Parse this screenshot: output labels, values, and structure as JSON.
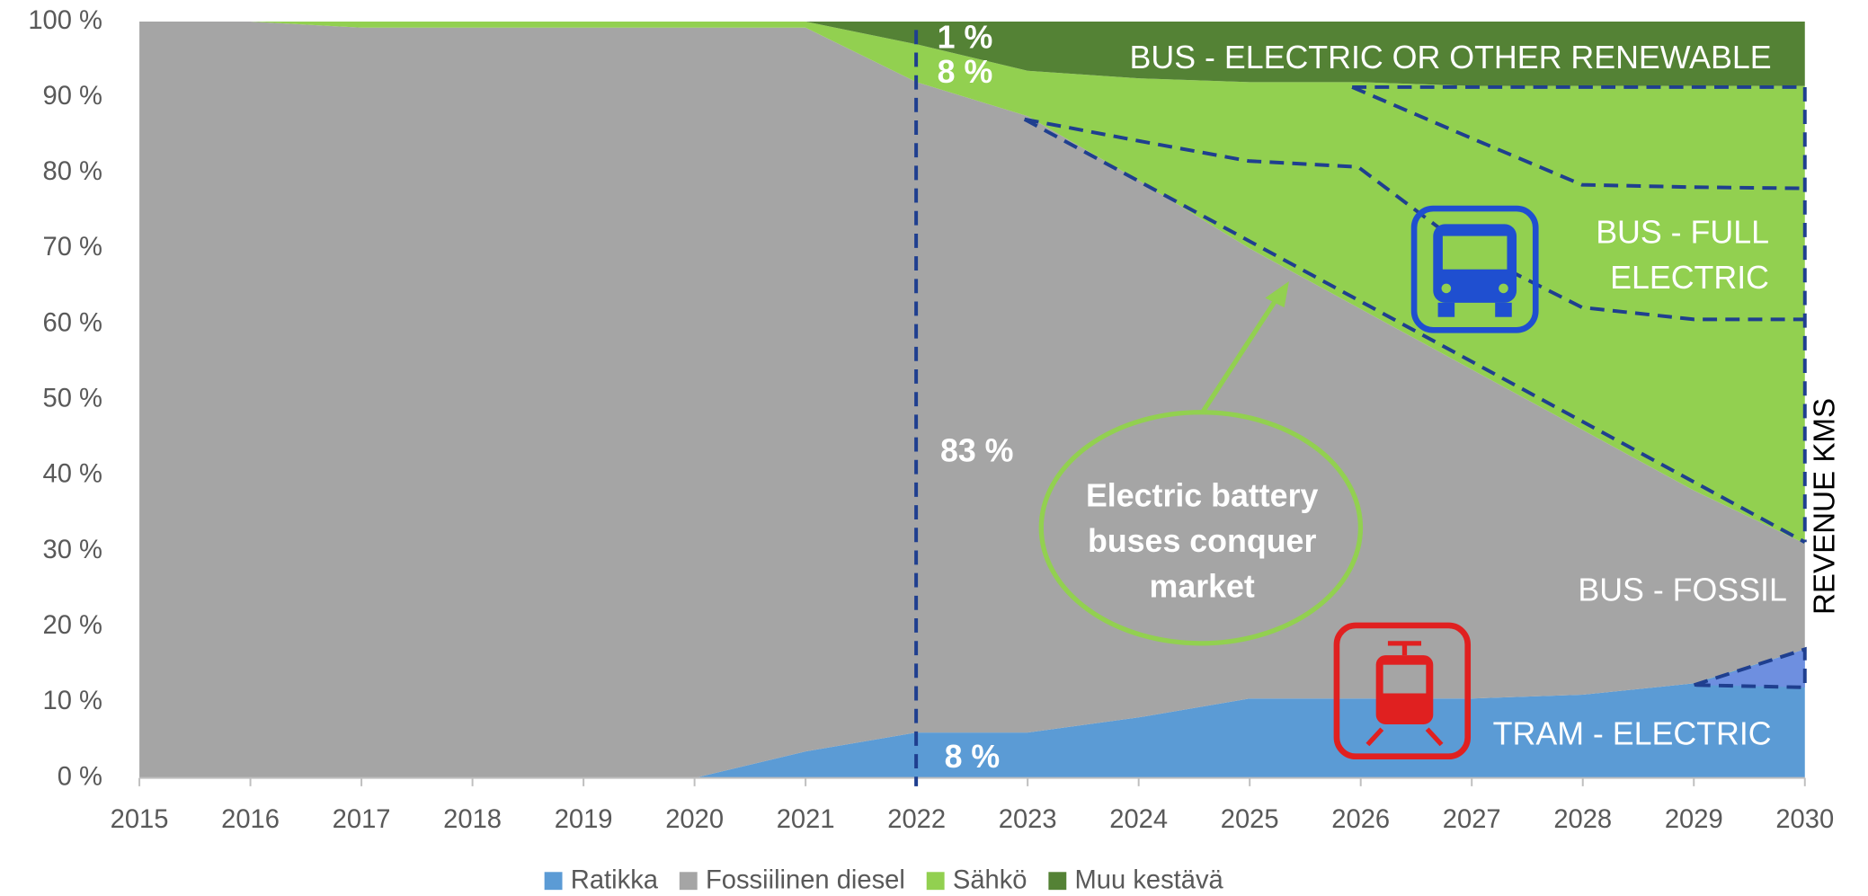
{
  "chart_data": {
    "type": "stacked_area",
    "x": [
      2015,
      2016,
      2017,
      2018,
      2019,
      2020,
      2021,
      2022,
      2023,
      2024,
      2025,
      2026,
      2027,
      2028,
      2029,
      2030
    ],
    "xlim": [
      2015,
      2030
    ],
    "xticks": [
      2015,
      2016,
      2017,
      2018,
      2019,
      2020,
      2021,
      2022,
      2023,
      2024,
      2025,
      2026,
      2027,
      2028,
      2029,
      2030
    ],
    "ylim": [
      0,
      100
    ],
    "yticks": [
      {
        "value": 0,
        "label": "0 %"
      },
      {
        "value": 10,
        "label": "10 %"
      },
      {
        "value": 20,
        "label": "20 %"
      },
      {
        "value": 30,
        "label": "30 %"
      },
      {
        "value": 40,
        "label": "40 %"
      },
      {
        "value": 50,
        "label": "50 %"
      },
      {
        "value": 60,
        "label": "60 %"
      },
      {
        "value": 70,
        "label": "70 %"
      },
      {
        "value": 80,
        "label": "80 %"
      },
      {
        "value": 90,
        "label": "90 %"
      },
      {
        "value": 100,
        "label": "100 %"
      }
    ],
    "series": [
      {
        "name": "Ratikka",
        "color": "#5b9bd5",
        "values": [
          0,
          0,
          0,
          0,
          0,
          0,
          3.5,
          6,
          6,
          8,
          10.5,
          10.5,
          10.5,
          11,
          12.5,
          17
        ]
      },
      {
        "name": "Fossiilinen diesel",
        "color": "#a5a5a5",
        "values": [
          100,
          100,
          99.2,
          99.2,
          99.2,
          99.2,
          95.7,
          86,
          81.5,
          71,
          59.5,
          51.5,
          43.5,
          35,
          25.5,
          14
        ]
      },
      {
        "name": "Sähkö",
        "color": "#92d050",
        "values": [
          0,
          0,
          0.8,
          0.8,
          0.8,
          0.8,
          0.8,
          5,
          6,
          13.5,
          22,
          30,
          37.5,
          45.5,
          53.5,
          60.5
        ]
      },
      {
        "name": "Muu kestävä",
        "color": "#548235",
        "values": [
          0,
          0,
          0,
          0,
          0,
          0,
          0,
          3,
          6.5,
          7.5,
          8,
          8,
          8.5,
          8.5,
          8.5,
          8.5
        ]
      }
    ],
    "legend": "bottom",
    "annotations": [
      "1 %",
      "8 %",
      "83 %",
      "8 %",
      "BUS - ELECTRIC OR OTHER RENEWABLE",
      [
        "BUS - FULL",
        "ELECTRIC"
      ],
      "BUS - FOSSIL",
      "TRAM -  ELECTRIC",
      [
        "Electric battery",
        "buses conquer",
        "market"
      ],
      "REVENUE KMS"
    ]
  }
}
